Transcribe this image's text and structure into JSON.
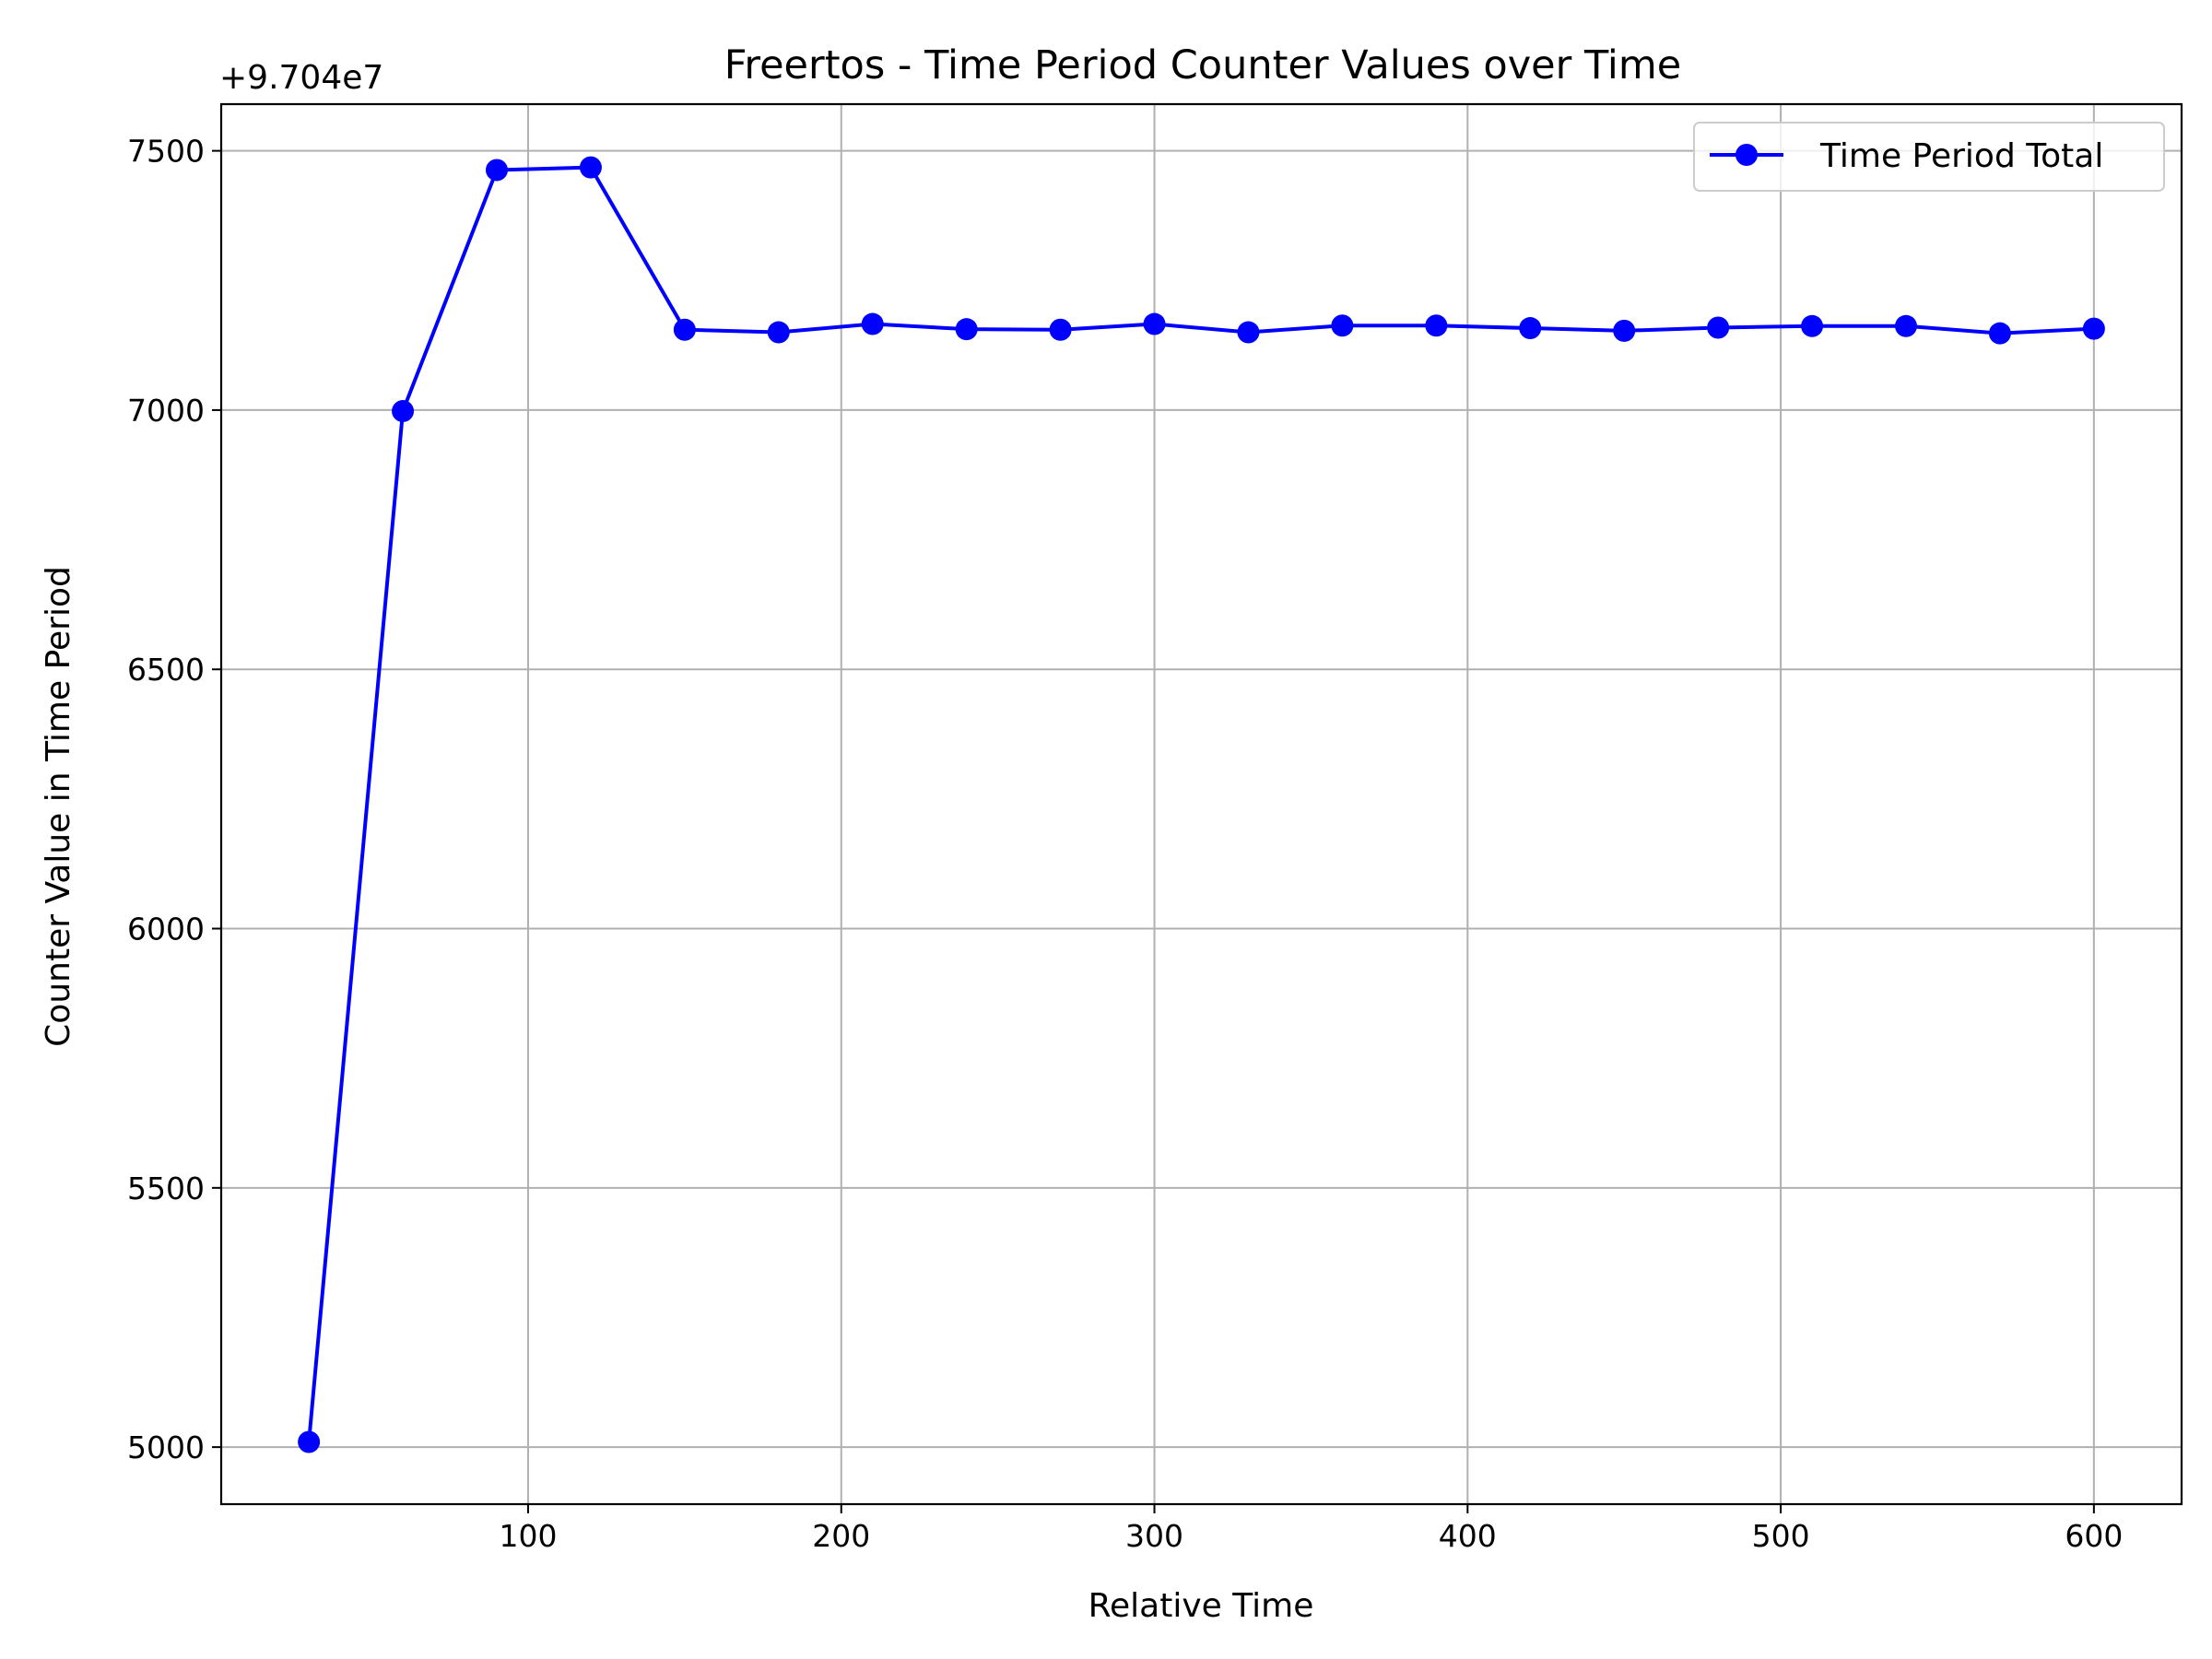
{
  "chart_data": {
    "type": "line",
    "title": "Freertos - Time Period Counter Values over Time",
    "xlabel": "Relative Time",
    "ylabel": "Counter Value in Time Period",
    "y_offset_label": "+9.704e7",
    "y_offset": 97040000,
    "xlim": [
      2,
      628
    ],
    "ylim": [
      4890,
      7590
    ],
    "x_ticks": [
      100,
      200,
      300,
      400,
      500,
      600
    ],
    "y_ticks": [
      5000,
      5500,
      6000,
      6500,
      7000,
      7500
    ],
    "grid": true,
    "legend_position": "top-right",
    "colors": {
      "series": "#0000ff",
      "grid": "#b0b0b0"
    },
    "x": [
      30,
      60,
      90,
      120,
      150,
      180,
      210,
      240,
      270,
      300,
      330,
      360,
      390,
      420,
      450,
      480,
      510,
      540,
      570,
      600
    ],
    "series": [
      {
        "name": "Time Period Total",
        "marker": "circle",
        "values": [
          5010,
          6998,
          7463,
          7468,
          7155,
          7150,
          7166,
          7156,
          7155,
          7166,
          7150,
          7163,
          7163,
          7158,
          7153,
          7159,
          7162,
          7162,
          7148,
          7157
        ]
      }
    ]
  }
}
